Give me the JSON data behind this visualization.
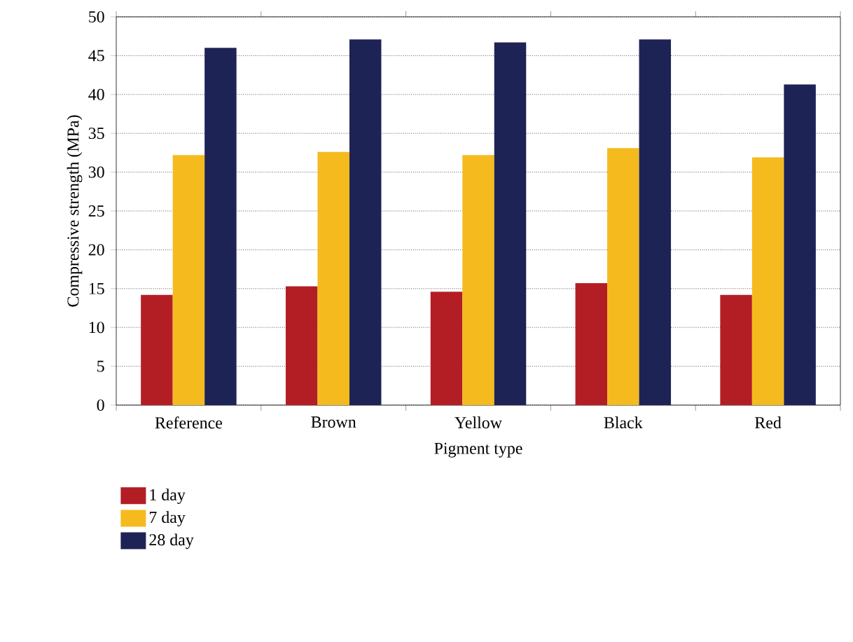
{
  "chart_data": {
    "type": "bar",
    "xlabel": "Pigment type",
    "ylabel": "Compressive strength (MPa)",
    "categories": [
      "Reference",
      "Brown",
      "Yellow",
      "Black",
      "Red"
    ],
    "series": [
      {
        "name": "1 day",
        "color": "#b31e24",
        "values": [
          14.2,
          15.3,
          14.6,
          15.7,
          14.2
        ]
      },
      {
        "name": "7 day",
        "color": "#f5bb1e",
        "values": [
          32.2,
          32.6,
          32.2,
          33.1,
          31.9
        ]
      },
      {
        "name": "28 day",
        "color": "#1e2356",
        "values": [
          46.0,
          47.1,
          46.7,
          47.1,
          41.3
        ]
      }
    ],
    "ylim": [
      0,
      50
    ],
    "yticks": [
      0,
      5,
      10,
      15,
      20,
      25,
      30,
      35,
      40,
      45,
      50
    ],
    "grid": "y",
    "legend": "bottom left"
  }
}
